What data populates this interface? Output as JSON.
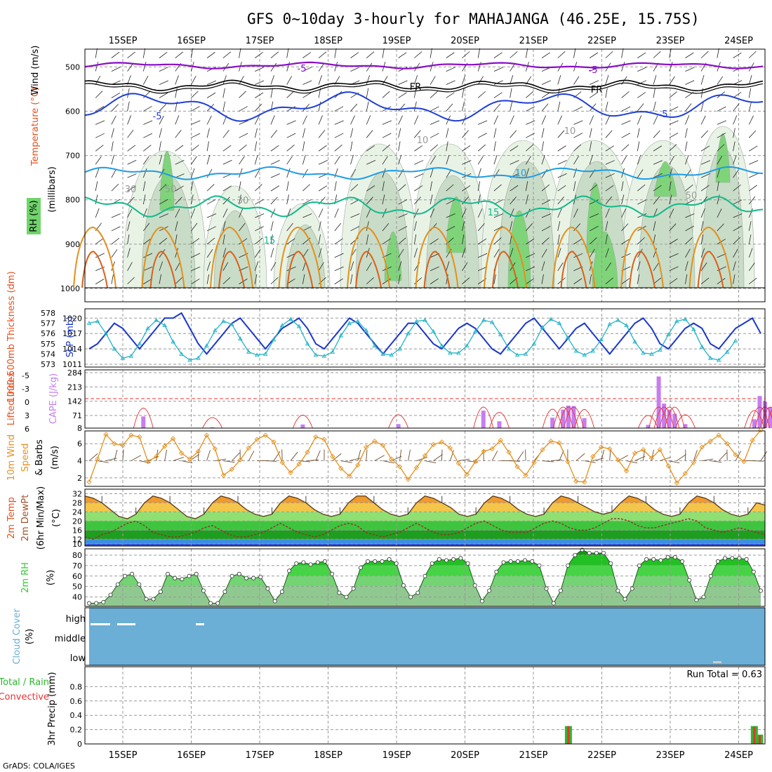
{
  "title": "GFS 0~10day 3-hourly for MAHAJANGA (46.25E, 15.75S)",
  "footer": "GrADS: COLA/IGES",
  "colors": {
    "purple": "#8a0dc8",
    "blue": "#1e3fd6",
    "lightblue": "#1e9be6",
    "teal": "#12b88c",
    "orange": "#e3901d",
    "cape": "#c77df0",
    "slp": "#1b36c9",
    "thick": "#22b3c8",
    "cloud": "#6baed6",
    "rhgreen": "#2ecc2e",
    "rain": "#2db82d",
    "conv": "#e83232"
  },
  "chart_data": [
    {
      "type": "contour",
      "panel": "upper_air",
      "ylabels": [
        "Temperature (°C)",
        "Wind (m/s)",
        "(millibars)",
        "RH (%)"
      ],
      "xlabels": [
        "15SEP",
        "16SEP",
        "17SEP",
        "18SEP",
        "19SEP",
        "20SEP",
        "21SEP",
        "22SEP",
        "23SEP",
        "24SEP"
      ],
      "y_ticks": [
        "500",
        "600",
        "700",
        "800",
        "900",
        "1000"
      ],
      "y_range": [
        460,
        1030
      ],
      "contour_labels": [
        "-5",
        "-5",
        "FR",
        "FR",
        "-5",
        "-5",
        "10",
        "10",
        "15",
        "15",
        "10",
        "30",
        "50",
        "50",
        "30"
      ],
      "isotherm_levels_mb": {
        "-5": 497,
        "FR": 542,
        "5": 590,
        "10": 740,
        "15": 815
      }
    },
    {
      "type": "line",
      "panel": "slp_thickness",
      "ylabel_left": "1000-500mb Thickness (dm)",
      "ylabel_right": "SLP (mb)",
      "thickness_ticks": [
        "578",
        "577",
        "576",
        "575",
        "574",
        "573"
      ],
      "slp_ticks": [
        "1020",
        "1017",
        "1014",
        "1011"
      ],
      "slp_range": [
        1011,
        1021
      ],
      "thickness_range": [
        573,
        578
      ],
      "series": [
        {
          "name": "SLP",
          "values": [
            1014,
            1015,
            1017,
            1019,
            1018,
            1016,
            1014,
            1016,
            1018,
            1020,
            1020,
            1021,
            1018,
            1015,
            1013,
            1015,
            1017,
            1019,
            1020,
            1018,
            1016,
            1014,
            1016,
            1018,
            1019,
            1020,
            1018,
            1015,
            1014,
            1016,
            1018,
            1020,
            1019,
            1017,
            1015,
            1013,
            1015,
            1017,
            1019,
            1019,
            1017,
            1015,
            1014,
            1016,
            1018,
            1019,
            1018,
            1016,
            1014,
            1013,
            1015,
            1017,
            1019,
            1020,
            1018,
            1016,
            1014,
            1016,
            1018,
            1019,
            1017,
            1015,
            1013,
            1015,
            1017,
            1019,
            1020,
            1018,
            1015,
            1014,
            1016,
            1018,
            1019,
            1018,
            1015,
            1014,
            1016,
            1018,
            1019,
            1020,
            1017
          ]
        },
        {
          "name": "Thickness",
          "values": [
            577.0,
            577.2,
            576.0,
            574.5,
            573.6,
            573.8,
            575.0,
            576.5,
            577.3,
            576.8,
            575.2,
            574.0,
            573.4,
            573.6,
            574.8,
            576.3,
            577.2,
            576.9,
            575.5,
            574.2,
            573.9,
            574.0,
            575.4,
            576.8,
            577.4,
            576.7,
            575.0,
            573.9,
            573.8,
            574.2,
            575.8,
            577.0,
            577.2,
            576.3,
            574.8,
            574.0,
            573.9,
            574.5,
            576.0,
            577.2,
            577.3,
            576.2,
            574.8,
            574.1,
            574.1,
            574.8,
            576.2,
            577.3,
            577.1,
            575.9,
            574.5,
            573.9,
            574.0,
            575.0,
            576.6,
            577.4,
            577.0,
            575.6,
            574.3,
            573.9,
            574.3,
            575.4,
            576.9,
            577.3,
            576.8,
            575.2,
            574.1,
            574.0,
            574.4,
            575.9,
            577.2,
            577.4,
            576.4,
            574.7,
            573.6,
            573.4,
            574.2,
            575.3
          ]
        }
      ]
    },
    {
      "type": "bar+line",
      "panel": "cape_li",
      "ylabel_left": "Lifted Index",
      "ylabel_right": "CAPE (J/kg)",
      "li_ticks": [
        "-5",
        "-3",
        "0",
        "3",
        "6"
      ],
      "cape_ticks": [
        "284",
        "213",
        "142",
        "71",
        "8"
      ],
      "cape_range": [
        8,
        284
      ],
      "cape_bars": [
        {
          "t": 11,
          "v": 66
        },
        {
          "t": 24,
          "v": 12
        },
        {
          "t": 41,
          "v": 26
        },
        {
          "t": 59,
          "v": 28
        },
        {
          "t": 75,
          "v": 95
        },
        {
          "t": 78,
          "v": 42
        },
        {
          "t": 88,
          "v": 60
        },
        {
          "t": 90,
          "v": 100
        },
        {
          "t": 91,
          "v": 120
        },
        {
          "t": 92,
          "v": 118
        },
        {
          "t": 94,
          "v": 58
        },
        {
          "t": 106,
          "v": 24
        },
        {
          "t": 108,
          "v": 265
        },
        {
          "t": 109,
          "v": 130
        },
        {
          "t": 110,
          "v": 100
        },
        {
          "t": 111,
          "v": 80
        },
        {
          "t": 113,
          "v": 28
        },
        {
          "t": 126,
          "v": 52
        },
        {
          "t": 127,
          "v": 168
        },
        {
          "t": 128,
          "v": 140
        },
        {
          "t": 129,
          "v": 112
        },
        {
          "t": 130,
          "v": 80
        }
      ]
    },
    {
      "type": "line",
      "panel": "wind10m",
      "ylabel": "10m Wind Speed & Barbs (m/s)",
      "y_ticks": [
        "6",
        "4",
        "2"
      ],
      "y_range": [
        1,
        7.5
      ],
      "values": [
        1.5,
        4.2,
        7.1,
        6.0,
        5.8,
        7.0,
        6.8,
        3.9,
        4.5,
        5.7,
        6.6,
        4.9,
        4.2,
        5.1,
        7.0,
        5.4,
        2.3,
        3.0,
        4.1,
        5.5,
        6.5,
        7.0,
        6.2,
        3.8,
        2.6,
        3.6,
        5.0,
        6.8,
        6.5,
        4.5,
        3.1,
        2.2,
        3.5,
        5.6,
        6.3,
        5.8,
        4.2,
        3.3,
        1.8,
        3.2,
        4.6,
        5.9,
        6.2,
        5.5,
        3.7,
        2.4,
        3.9,
        5.1,
        5.4,
        6.4,
        5.0,
        3.3,
        2.3,
        3.8,
        5.3,
        6.3,
        6.1,
        3.9,
        1.6,
        1.5,
        4.5,
        5.6,
        5.4,
        4.1,
        2.8,
        4.9,
        5.3,
        4.3,
        5.3,
        3.4,
        1.4,
        2.5,
        3.8,
        5.6,
        6.3,
        7.0,
        6.0,
        4.7,
        3.9,
        6.4,
        7.6
      ]
    },
    {
      "type": "area",
      "panel": "temp2m",
      "ylabel": "2m Temp / 2m DewPt / (6hr Min/Max) (°C)",
      "y_ticks": [
        "32",
        "28",
        "24",
        "20",
        "16",
        "12",
        "10"
      ],
      "y_range": [
        9,
        34
      ],
      "temp": [
        31,
        30,
        28,
        25,
        22,
        21,
        23,
        28,
        31,
        30,
        28,
        25,
        22,
        21,
        23,
        28,
        31,
        30,
        28,
        25,
        23,
        22,
        23,
        28,
        31,
        30,
        28,
        25,
        23,
        22,
        23,
        28,
        31,
        31,
        28,
        25,
        23,
        22,
        23,
        28,
        31,
        30,
        28,
        26,
        23,
        22,
        23,
        28,
        31,
        30,
        28,
        25,
        23,
        22,
        23,
        28,
        31,
        30,
        28,
        26,
        24,
        23,
        24,
        28,
        31,
        30,
        28,
        25,
        23,
        22,
        23,
        28,
        31,
        30,
        28,
        25,
        23,
        22,
        23,
        28,
        27
      ],
      "dewpt": [
        13,
        12,
        14,
        15,
        17,
        19,
        20,
        18,
        15,
        14,
        13,
        13,
        14,
        15,
        17,
        18,
        16,
        14,
        13,
        13,
        14,
        15,
        17,
        19,
        17,
        15,
        14,
        13,
        14,
        16,
        18,
        19,
        18,
        15,
        14,
        13,
        14,
        15,
        17,
        19,
        17,
        15,
        14,
        14,
        15,
        17,
        19,
        20,
        18,
        16,
        15,
        15,
        15,
        17,
        19,
        20,
        19,
        17,
        16,
        16,
        17,
        19,
        21,
        21,
        20,
        18,
        17,
        17,
        18,
        19,
        20,
        21,
        20,
        17,
        16,
        15,
        16,
        17,
        16,
        15,
        14
      ]
    },
    {
      "type": "area",
      "panel": "rh2m",
      "ylabel": "2m RH (%)",
      "y_ticks": [
        "80",
        "70",
        "60",
        "50",
        "40"
      ],
      "y_range": [
        31,
        86
      ],
      "values": [
        34,
        34,
        35,
        42,
        52,
        60,
        62,
        52,
        38,
        38,
        45,
        62,
        58,
        57,
        60,
        62,
        46,
        34,
        34,
        45,
        60,
        62,
        58,
        58,
        59,
        48,
        36,
        45,
        65,
        72,
        73,
        71,
        73,
        74,
        62,
        44,
        40,
        48,
        68,
        74,
        74,
        74,
        76,
        72,
        51,
        40,
        44,
        60,
        72,
        76,
        75,
        76,
        77,
        72,
        51,
        36,
        46,
        64,
        73,
        74,
        74,
        75,
        74,
        70,
        48,
        34,
        46,
        70,
        80,
        85,
        82,
        82,
        82,
        72,
        46,
        38,
        48,
        70,
        76,
        76,
        75,
        78,
        78,
        74,
        56,
        37,
        40,
        60,
        74,
        77,
        77,
        77,
        76,
        64,
        46
      ]
    },
    {
      "type": "heatmap",
      "panel": "cloud",
      "ylabel": "Cloud Cover (%)",
      "rows": [
        "high",
        "middle",
        "low"
      ]
    },
    {
      "type": "bar",
      "panel": "precip",
      "ylabel": "3hr Precip (mm)",
      "legend": [
        "Total / Rain",
        "Convective"
      ],
      "y_ticks": [
        "0.8",
        "0.6",
        "0.4",
        "0.2",
        "0"
      ],
      "y_range": [
        0,
        1.0
      ],
      "run_total_label": "Run Total = 0.63",
      "bars": [
        {
          "t": 91,
          "total": 0.25,
          "conv": 0.25
        },
        {
          "t": 126,
          "total": 0.25,
          "conv": 0.24
        },
        {
          "t": 127,
          "total": 0.13,
          "conv": 0.12
        }
      ]
    }
  ]
}
